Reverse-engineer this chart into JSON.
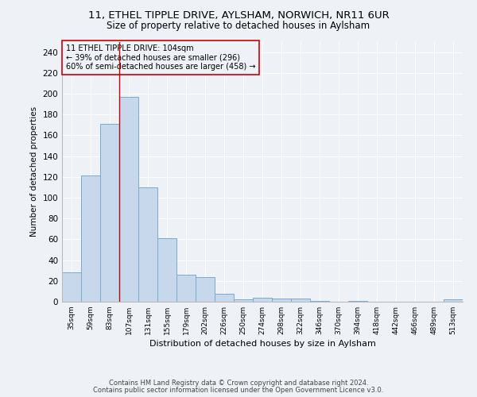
{
  "title": "11, ETHEL TIPPLE DRIVE, AYLSHAM, NORWICH, NR11 6UR",
  "subtitle": "Size of property relative to detached houses in Aylsham",
  "xlabel": "Distribution of detached houses by size in Aylsham",
  "ylabel": "Number of detached properties",
  "bar_color": "#c8d8ec",
  "bar_edge_color": "#7aabcc",
  "categories": [
    "35sqm",
    "59sqm",
    "83sqm",
    "107sqm",
    "131sqm",
    "155sqm",
    "179sqm",
    "202sqm",
    "226sqm",
    "250sqm",
    "274sqm",
    "298sqm",
    "322sqm",
    "346sqm",
    "370sqm",
    "394sqm",
    "418sqm",
    "442sqm",
    "466sqm",
    "489sqm",
    "513sqm"
  ],
  "values": [
    28,
    121,
    171,
    197,
    110,
    61,
    26,
    24,
    8,
    2,
    4,
    3,
    3,
    1,
    0,
    1,
    0,
    0,
    0,
    0,
    2
  ],
  "ylim": [
    0,
    250
  ],
  "yticks": [
    0,
    20,
    40,
    60,
    80,
    100,
    120,
    140,
    160,
    180,
    200,
    220,
    240
  ],
  "property_bin_index": 3,
  "vline_color": "#cc0000",
  "annotation_line1": "11 ETHEL TIPPLE DRIVE: 104sqm",
  "annotation_line2": "← 39% of detached houses are smaller (296)",
  "annotation_line3": "60% of semi-detached houses are larger (458) →",
  "annotation_box_color": "#cc0000",
  "footer_line1": "Contains HM Land Registry data © Crown copyright and database right 2024.",
  "footer_line2": "Contains public sector information licensed under the Open Government Licence v3.0.",
  "bg_color": "#eef2f7",
  "grid_color": "#ffffff"
}
